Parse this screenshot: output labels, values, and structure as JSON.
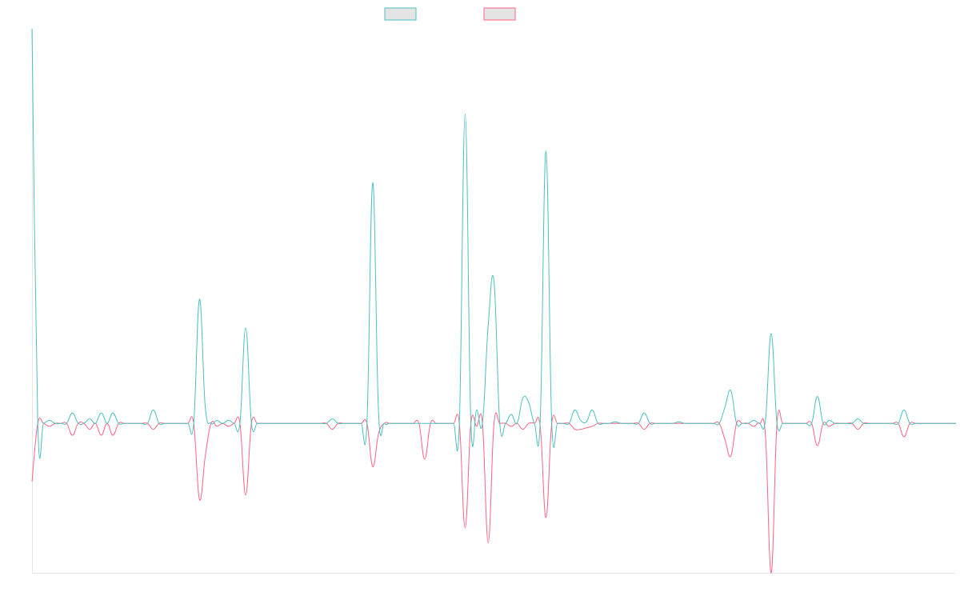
{
  "chart_data": {
    "type": "line",
    "title": "",
    "xlabel": "",
    "ylabel": "",
    "grid": false,
    "legend_placement": "top-center",
    "x_count": 161,
    "ylim": [
      -100,
      264
    ],
    "spikes": [
      {
        "x": 0,
        "up": 264,
        "down": -39
      },
      {
        "x": 3,
        "up": 2,
        "down": -2
      },
      {
        "x": 7,
        "up": 7,
        "down": -8
      },
      {
        "x": 10,
        "up": 3,
        "down": -4
      },
      {
        "x": 12,
        "up": 7,
        "down": -8
      },
      {
        "x": 14,
        "up": 7,
        "down": -8
      },
      {
        "x": 21,
        "up": 9,
        "down": -4
      },
      {
        "x": 29,
        "up": 83,
        "down": -51
      },
      {
        "x": 30,
        "up": 11,
        "down": -22
      },
      {
        "x": 32,
        "up": 2,
        "down": -2
      },
      {
        "x": 34,
        "up": 2,
        "down": -2
      },
      {
        "x": 37,
        "up": 64,
        "down": -48
      },
      {
        "x": 52,
        "up": 3,
        "down": -4
      },
      {
        "x": 59,
        "up": 161,
        "down": -29
      },
      {
        "x": 60,
        "up": 8,
        "down": -7
      },
      {
        "x": 68,
        "up": 0,
        "down": -24
      },
      {
        "x": 75,
        "up": 207,
        "down": -70
      },
      {
        "x": 77,
        "up": 9,
        "down": -2
      },
      {
        "x": 79,
        "up": 66,
        "down": -80
      },
      {
        "x": 80,
        "up": 95,
        "down": 0
      },
      {
        "x": 83,
        "up": 6,
        "down": -2
      },
      {
        "x": 85,
        "up": 17,
        "down": -4
      },
      {
        "x": 86,
        "up": 14,
        "down": 0
      },
      {
        "x": 88,
        "up": 2,
        "down": -2
      },
      {
        "x": 89,
        "up": 182,
        "down": -63
      },
      {
        "x": 94,
        "up": 9,
        "down": -4
      },
      {
        "x": 95,
        "up": 2,
        "down": -4
      },
      {
        "x": 96,
        "up": 1,
        "down": -3
      },
      {
        "x": 97,
        "up": 9,
        "down": -2
      },
      {
        "x": 101,
        "up": 1,
        "down": 0
      },
      {
        "x": 106,
        "up": 7,
        "down": -4
      },
      {
        "x": 112,
        "up": 1,
        "down": 0
      },
      {
        "x": 120,
        "up": 11,
        "down": -11
      },
      {
        "x": 121,
        "up": 22,
        "down": -22
      },
      {
        "x": 125,
        "up": 2,
        "down": -2
      },
      {
        "x": 127,
        "up": 2,
        "down": -8
      },
      {
        "x": 128,
        "up": 60,
        "down": -100
      },
      {
        "x": 136,
        "up": 18,
        "down": -15
      },
      {
        "x": 138,
        "up": 2,
        "down": -2
      },
      {
        "x": 143,
        "up": 3,
        "down": -4
      },
      {
        "x": 151,
        "up": 9,
        "down": -9
      }
    ],
    "series": [
      {
        "color": "#4bc0c0"
      },
      {
        "color": "#ff6384"
      }
    ]
  }
}
